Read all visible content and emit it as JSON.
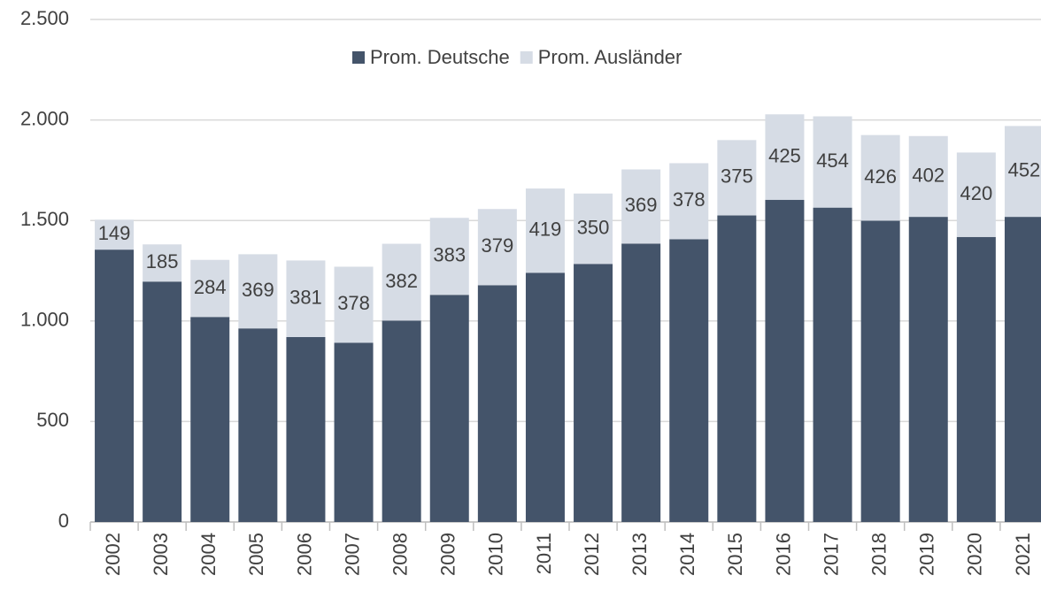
{
  "chart_data": {
    "type": "stacked_bar",
    "categories": [
      "2002",
      "2003",
      "2004",
      "2005",
      "2006",
      "2007",
      "2008",
      "2009",
      "2010",
      "2011",
      "2012",
      "2013",
      "2014",
      "2015",
      "2016",
      "2017",
      "2018",
      "2019",
      "2020",
      "2021"
    ],
    "series": [
      {
        "name": "Prom. Deutsche",
        "color": "#44546a",
        "values": [
          1355,
          1196,
          1020,
          963,
          920,
          892,
          1002,
          1130,
          1178,
          1240,
          1284,
          1385,
          1407,
          1525,
          1603,
          1564,
          1499,
          1518,
          1418,
          1518
        ]
      },
      {
        "name": "Prom. Ausländer",
        "color": "#d6dce5",
        "values": [
          149,
          185,
          284,
          369,
          381,
          378,
          382,
          383,
          379,
          419,
          350,
          369,
          378,
          375,
          425,
          454,
          426,
          402,
          420,
          452
        ],
        "show_value_labels": true
      }
    ],
    "ylim": [
      0,
      2500
    ],
    "yticks": [
      0,
      500,
      {
        "value": 1000,
        "label": "1.000"
      },
      {
        "value": 1500,
        "label": "1.500"
      },
      {
        "value": 2000,
        "label": "2.000"
      },
      {
        "value": 2500,
        "label": "2.500"
      }
    ],
    "grid": true,
    "legend": "top"
  }
}
